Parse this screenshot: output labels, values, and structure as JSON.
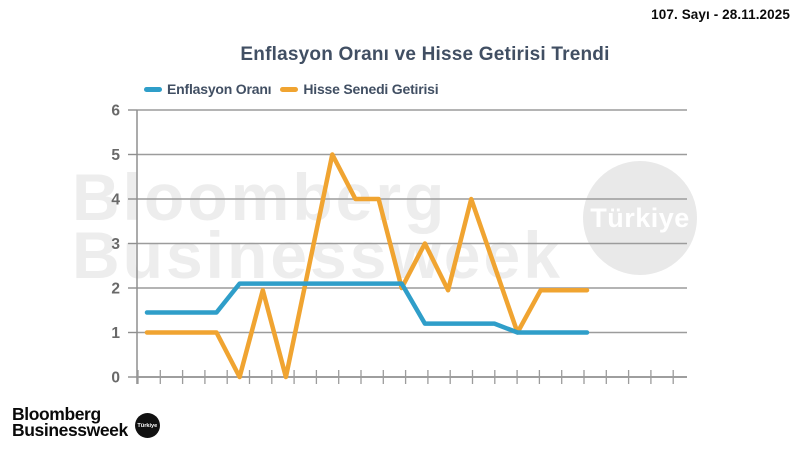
{
  "header": {
    "issue_date": "107. Sayı - 28.11.2025"
  },
  "chart_data": {
    "type": "line",
    "title": "Enflasyon Oranı ve Hisse Getirisi Trendi",
    "n_points": 20,
    "x_tick_labels": [],
    "ylim": [
      0,
      6
    ],
    "yticks": [
      0,
      1,
      2,
      3,
      4,
      5,
      6
    ],
    "grid": "horizontal",
    "legend_position": "top-left",
    "series": [
      {
        "name": "Enflasyon Oranı",
        "color": "#2F9EC9",
        "values": [
          1.45,
          1.45,
          1.45,
          1.45,
          2.1,
          2.1,
          2.1,
          2.1,
          2.1,
          2.1,
          2.1,
          2.1,
          1.2,
          1.2,
          1.2,
          1.2,
          1.0,
          1.0,
          1.0,
          1.0
        ]
      },
      {
        "name": "Hisse Senedi Getirisi",
        "color": "#F0A431",
        "values": [
          1.0,
          1.0,
          1.0,
          1.0,
          0.0,
          1.95,
          0.0,
          2.5,
          5.0,
          4.0,
          4.0,
          2.0,
          3.0,
          1.95,
          4.0,
          2.5,
          1.0,
          1.95,
          1.95,
          1.95
        ]
      }
    ]
  },
  "watermark": {
    "brand_line1": "Bloomberg",
    "brand_line2": "Businessweek",
    "badge": "Türkiye"
  },
  "footer_logo": {
    "brand_line1": "Bloomberg",
    "brand_line2": "Businessweek",
    "badge": "Türkiye"
  },
  "colors": {
    "series_blue": "#2F9EC9",
    "series_orange": "#F0A431",
    "title_text": "#414F63",
    "axis_text": "#696969",
    "grid_line": "#9C9C9C",
    "axis_line": "#8F8F8F",
    "watermark_gray": "#EDEDED"
  }
}
